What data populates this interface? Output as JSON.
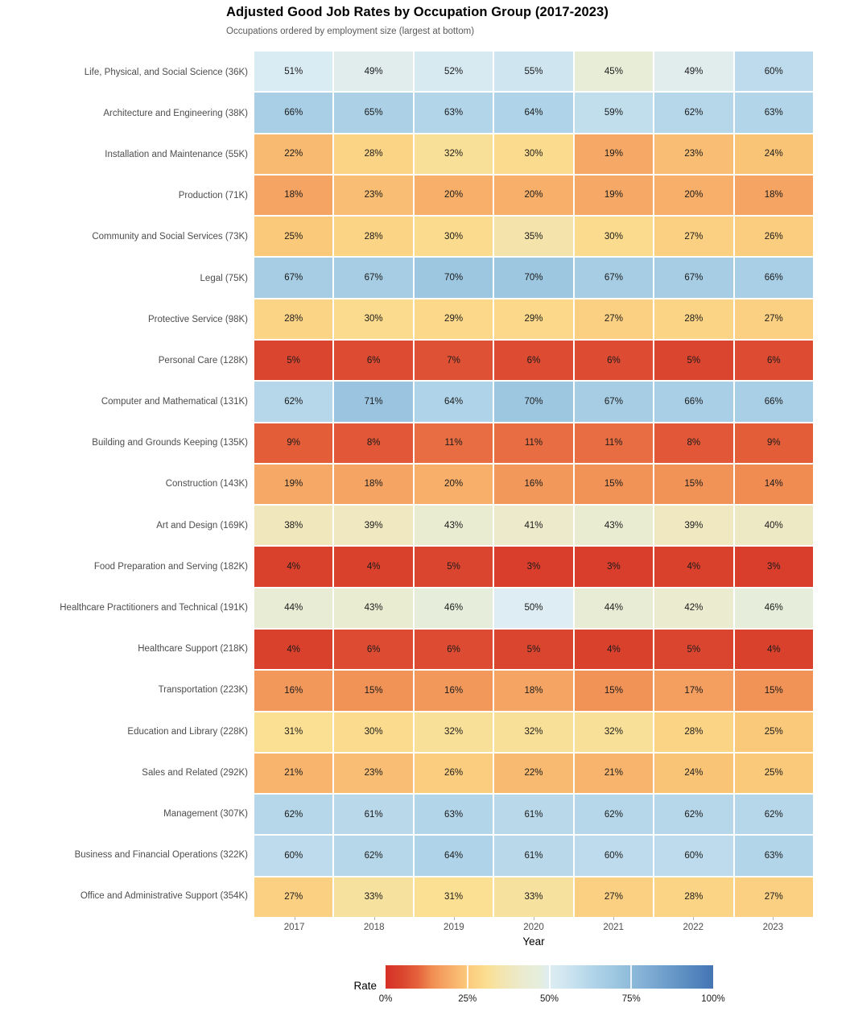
{
  "chart_data": {
    "type": "heatmap",
    "title": "Adjusted Good Job Rates by Occupation Group (2017-2023)",
    "subtitle": "Occupations ordered by employment size (largest at bottom)",
    "xlabel": "Year",
    "x": [
      "2017",
      "2018",
      "2019",
      "2020",
      "2021",
      "2022",
      "2023"
    ],
    "value_suffix": "%",
    "rows": [
      {
        "label": "Life, Physical, and Social Science (36K)",
        "values": [
          51,
          49,
          52,
          55,
          45,
          49,
          60
        ]
      },
      {
        "label": "Architecture and Engineering (38K)",
        "values": [
          66,
          65,
          63,
          64,
          59,
          62,
          63
        ]
      },
      {
        "label": "Installation and Maintenance (55K)",
        "values": [
          22,
          28,
          32,
          30,
          19,
          23,
          24
        ]
      },
      {
        "label": "Production (71K)",
        "values": [
          18,
          23,
          20,
          20,
          19,
          20,
          18
        ]
      },
      {
        "label": "Community and Social Services (73K)",
        "values": [
          25,
          28,
          30,
          35,
          30,
          27,
          26
        ]
      },
      {
        "label": "Legal (75K)",
        "values": [
          67,
          67,
          70,
          70,
          67,
          67,
          66
        ]
      },
      {
        "label": "Protective Service (98K)",
        "values": [
          28,
          30,
          29,
          29,
          27,
          28,
          27
        ]
      },
      {
        "label": "Personal Care (128K)",
        "values": [
          5,
          6,
          7,
          6,
          6,
          5,
          6
        ]
      },
      {
        "label": "Computer and Mathematical (131K)",
        "values": [
          62,
          71,
          64,
          70,
          67,
          66,
          66
        ]
      },
      {
        "label": "Building and Grounds Keeping (135K)",
        "values": [
          9,
          8,
          11,
          11,
          11,
          8,
          9
        ]
      },
      {
        "label": "Construction (143K)",
        "values": [
          19,
          18,
          20,
          16,
          15,
          15,
          14
        ]
      },
      {
        "label": "Art and Design (169K)",
        "values": [
          38,
          39,
          43,
          41,
          43,
          39,
          40
        ]
      },
      {
        "label": "Food Preparation and Serving (182K)",
        "values": [
          4,
          4,
          5,
          3,
          3,
          4,
          3
        ]
      },
      {
        "label": "Healthcare Practitioners and Technical (191K)",
        "values": [
          44,
          43,
          46,
          50,
          44,
          42,
          46
        ]
      },
      {
        "label": "Healthcare Support (218K)",
        "values": [
          4,
          6,
          6,
          5,
          4,
          5,
          4
        ]
      },
      {
        "label": "Transportation (223K)",
        "values": [
          16,
          15,
          16,
          18,
          15,
          17,
          15
        ]
      },
      {
        "label": "Education and Library (228K)",
        "values": [
          31,
          30,
          32,
          32,
          32,
          28,
          25
        ]
      },
      {
        "label": "Sales and Related (292K)",
        "values": [
          21,
          23,
          26,
          22,
          21,
          24,
          25
        ]
      },
      {
        "label": "Management (307K)",
        "values": [
          62,
          61,
          63,
          61,
          62,
          62,
          62
        ]
      },
      {
        "label": "Business and Financial Operations (322K)",
        "values": [
          60,
          62,
          64,
          61,
          60,
          60,
          63
        ]
      },
      {
        "label": "Office and Administrative Support (354K)",
        "values": [
          27,
          33,
          31,
          33,
          27,
          28,
          27
        ]
      }
    ],
    "legend": {
      "title": "Rate",
      "tick_labels": [
        "0%",
        "25%",
        "50%",
        "75%",
        "100%"
      ],
      "tick_positions": [
        0,
        25,
        50,
        75,
        100
      ],
      "bar_tick_positions": [
        25,
        50,
        75
      ],
      "range": [
        0,
        100
      ]
    },
    "colormap": {
      "name": "red-yellow-blue-diverging",
      "stops": [
        [
          0,
          "#d73027"
        ],
        [
          5,
          "#da452f"
        ],
        [
          10,
          "#e5633c"
        ],
        [
          14,
          "#f08c52"
        ],
        [
          18,
          "#f5a463"
        ],
        [
          25,
          "#fbc97a"
        ],
        [
          31,
          "#fbdf92"
        ],
        [
          36,
          "#f2e5b2"
        ],
        [
          42,
          "#ebebcf"
        ],
        [
          47,
          "#e5eedd"
        ],
        [
          50,
          "#ddedf3"
        ],
        [
          56,
          "#cce4f0"
        ],
        [
          63,
          "#b2d5e9"
        ],
        [
          70,
          "#9dc7e1"
        ],
        [
          80,
          "#7fadd3"
        ],
        [
          90,
          "#6092c4"
        ],
        [
          100,
          "#4575b4"
        ]
      ]
    },
    "layout": {
      "grid_on": false,
      "legend_position": "bottom"
    },
    "text_colors": {
      "cell_text": "#1a1a1a",
      "axis_text": "#4d4d4d",
      "title": "#000000",
      "subtitle": "#5a5a5a"
    }
  }
}
